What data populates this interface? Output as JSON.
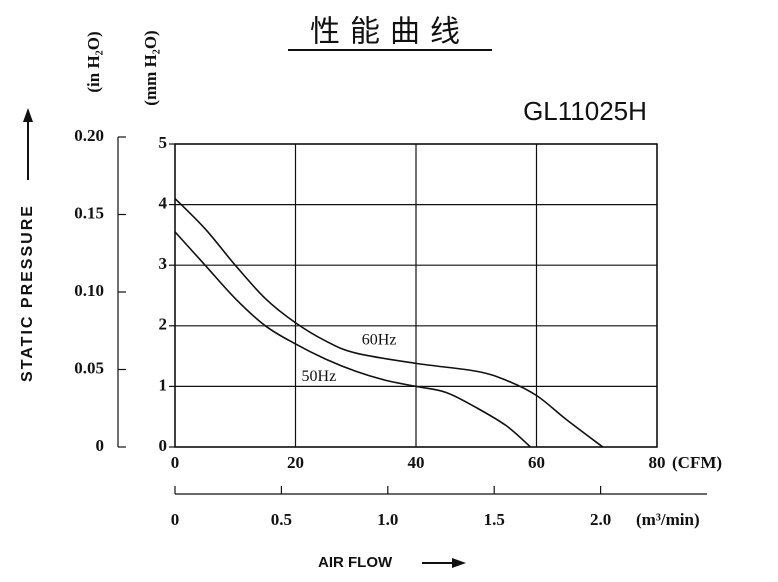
{
  "chart_data": {
    "type": "line",
    "title": "性能曲线",
    "subtitle": "GL11025H",
    "x_label": "AIR FLOW",
    "x_unit": "(CFM)",
    "x2_unit": "(m³/min)",
    "y_label": "STATIC PRESSURE",
    "y_unit": "(mm H₂O)",
    "y2_unit": "(in H₂O)",
    "xlim": [
      0,
      80
    ],
    "xticks": [
      0,
      20,
      40,
      60,
      80
    ],
    "x2lim": [
      0,
      2.5
    ],
    "x2ticks": [
      0,
      0.5,
      {
        "value": 1,
        "label": "1.0"
      },
      1.5,
      {
        "value": 2,
        "label": "2.0"
      }
    ],
    "ylim": [
      0,
      5
    ],
    "yticks": [
      0,
      1,
      2,
      3,
      4,
      5
    ],
    "y2lim": [
      0,
      0.2
    ],
    "y2ticks": [
      0,
      0.05,
      {
        "value": 0.1,
        "label": "0.10"
      },
      0.15,
      {
        "value": 0.2,
        "label": "0.20"
      }
    ],
    "grid": true,
    "series": [
      {
        "name": "60Hz",
        "color": "#111111",
        "x": [
          0,
          5,
          10,
          15,
          20,
          25,
          30,
          40,
          50,
          55,
          60,
          65,
          71
        ],
        "values": [
          4.1,
          3.6,
          3.0,
          2.45,
          2.05,
          1.75,
          1.55,
          1.38,
          1.25,
          1.1,
          0.85,
          0.45,
          0
        ]
      },
      {
        "name": "50Hz",
        "color": "#111111",
        "x": [
          0,
          5,
          10,
          15,
          20,
          25,
          30,
          35,
          40,
          45,
          50,
          55,
          59
        ],
        "values": [
          3.55,
          3.0,
          2.45,
          2.0,
          1.7,
          1.45,
          1.25,
          1.1,
          1.0,
          0.9,
          0.65,
          0.35,
          0
        ]
      }
    ]
  }
}
